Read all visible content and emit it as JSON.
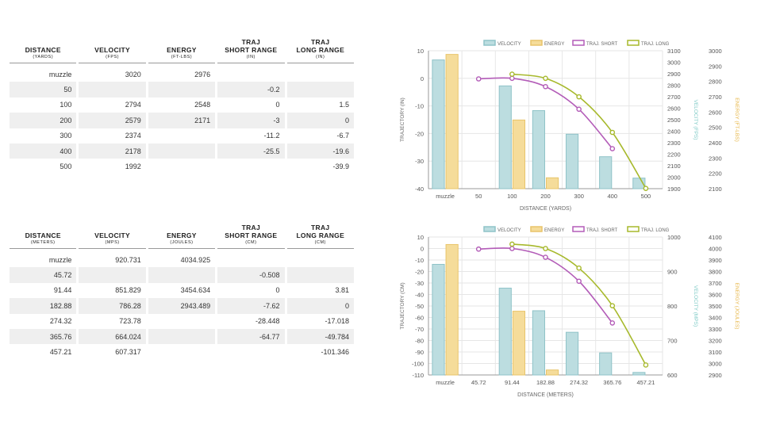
{
  "imperial_table": {
    "headers": [
      {
        "main": "DISTANCE",
        "sub": "(YARDS)"
      },
      {
        "main": "VELOCITY",
        "sub": "(FPS)"
      },
      {
        "main": "ENERGY",
        "sub": "(FT-LBS)"
      },
      {
        "main": "TRAJ\nSHORT RANGE",
        "sub": "(IN)"
      },
      {
        "main": "TRAJ\nLONG RANGE",
        "sub": "(IN)"
      }
    ],
    "rows": [
      [
        "muzzle",
        "3020",
        "2976",
        "",
        ""
      ],
      [
        "50",
        "",
        "",
        "-0.2",
        ""
      ],
      [
        "100",
        "2794",
        "2548",
        "0",
        "1.5"
      ],
      [
        "200",
        "2579",
        "2171",
        "-3",
        "0"
      ],
      [
        "300",
        "2374",
        "",
        "-11.2",
        "-6.7"
      ],
      [
        "400",
        "2178",
        "",
        "-25.5",
        "-19.6"
      ],
      [
        "500",
        "1992",
        "",
        "",
        "-39.9"
      ]
    ]
  },
  "metric_table": {
    "headers": [
      {
        "main": "DISTANCE",
        "sub": "(METERS)"
      },
      {
        "main": "VELOCITY",
        "sub": "(MPS)"
      },
      {
        "main": "ENERGY",
        "sub": "(JOULES)"
      },
      {
        "main": "TRAJ\nSHORT RANGE",
        "sub": "(CM)"
      },
      {
        "main": "TRAJ\nLONG RANGE",
        "sub": "(CM)"
      }
    ],
    "rows": [
      [
        "muzzle",
        "920.731",
        "4034.925",
        "",
        ""
      ],
      [
        "45.72",
        "",
        "",
        "-0.508",
        ""
      ],
      [
        "91.44",
        "851.829",
        "3454.634",
        "0",
        "3.81"
      ],
      [
        "182.88",
        "786.28",
        "2943.489",
        "-7.62",
        "0"
      ],
      [
        "274.32",
        "723.78",
        "",
        "-28.448",
        "-17.018"
      ],
      [
        "365.76",
        "664.024",
        "",
        "-64.77",
        "-49.784"
      ],
      [
        "457.21",
        "607.317",
        "",
        "",
        "-101.346"
      ]
    ]
  },
  "colors": {
    "velocity_fill": "#bcdde0",
    "velocity_stroke": "#8fc3c8",
    "energy_fill": "#f5dc9a",
    "energy_stroke": "#e8c46a",
    "short": "#b35cb8",
    "long": "#a7b92c",
    "velocity_axis": "#7ecac6",
    "energy_axis": "#e8b84c",
    "grid": "#e6e6e6",
    "axis_text": "#555555"
  },
  "chart_data": [
    {
      "type": "bar+line",
      "legend": [
        "VELOCITY",
        "ENERGY",
        "TRAJ. SHORT",
        "TRAJ. LONG"
      ],
      "categories": [
        "muzzle",
        "50",
        "100",
        "200",
        "300",
        "400",
        "500"
      ],
      "xlabel": "DISTANCE (YARDS)",
      "ylabel_left": "TRAJECTORY (IN)",
      "ylabel_right1": "VELOCITY (FPS)",
      "ylabel_right2": "ENERGY (FT-LBS)",
      "left_ticks": [
        "10",
        "0",
        "-10",
        "-20",
        "-30",
        "-40"
      ],
      "right1_ticks": [
        "3100",
        "3000",
        "2900",
        "2800",
        "2700",
        "2600",
        "2500",
        "2400",
        "2300",
        "2200",
        "2100",
        "2000",
        "1900"
      ],
      "right2_ticks": [
        "3000",
        "2900",
        "2800",
        "2700",
        "2600",
        "2500",
        "2400",
        "2300",
        "2200",
        "2100"
      ],
      "left_range": [
        -40,
        10
      ],
      "right1_range": [
        1900,
        3100
      ],
      "right2_range": [
        2100,
        3000
      ],
      "velocity": [
        3020,
        null,
        2794,
        2579,
        2374,
        2178,
        1992
      ],
      "energy": [
        2976,
        null,
        2548,
        2171,
        null,
        null,
        null
      ],
      "traj_short": [
        null,
        -0.2,
        0,
        -3,
        -11.2,
        -25.5,
        null
      ],
      "traj_long": [
        null,
        null,
        1.5,
        0,
        -6.7,
        -19.6,
        -39.9
      ]
    },
    {
      "type": "bar+line",
      "legend": [
        "VELOCITY",
        "ENERGY",
        "TRAJ. SHORT",
        "TRAJ. LONG"
      ],
      "categories": [
        "muzzle",
        "45.72",
        "91.44",
        "182.88",
        "274.32",
        "365.76",
        "457.21"
      ],
      "xlabel": "DISTANCE (METERS)",
      "ylabel_left": "TRAJECTORY (CM)",
      "ylabel_right1": "VELOCITY (MPS)",
      "ylabel_right2": "ENERGY (JOULES)",
      "left_ticks": [
        "10",
        "0",
        "-10",
        "-20",
        "-30",
        "-40",
        "-50",
        "-60",
        "-70",
        "-80",
        "-90",
        "-100",
        "-110"
      ],
      "right1_ticks": [
        "1000",
        "900",
        "800",
        "700",
        "600"
      ],
      "right2_ticks": [
        "4100",
        "4000",
        "3900",
        "3800",
        "3700",
        "3600",
        "3500",
        "3400",
        "3300",
        "3200",
        "3100",
        "3000",
        "2900"
      ],
      "left_range": [
        -110,
        10
      ],
      "right1_range": [
        600,
        1000
      ],
      "right2_range": [
        2900,
        4100
      ],
      "velocity": [
        920.731,
        null,
        851.829,
        786.28,
        723.78,
        664.024,
        607.317
      ],
      "energy": [
        4034.925,
        null,
        3454.634,
        2943.489,
        null,
        null,
        null
      ],
      "traj_short": [
        null,
        -0.508,
        0,
        -7.62,
        -28.448,
        -64.77,
        null
      ],
      "traj_long": [
        null,
        null,
        3.81,
        0,
        -17.018,
        -49.784,
        -101.346
      ]
    }
  ]
}
